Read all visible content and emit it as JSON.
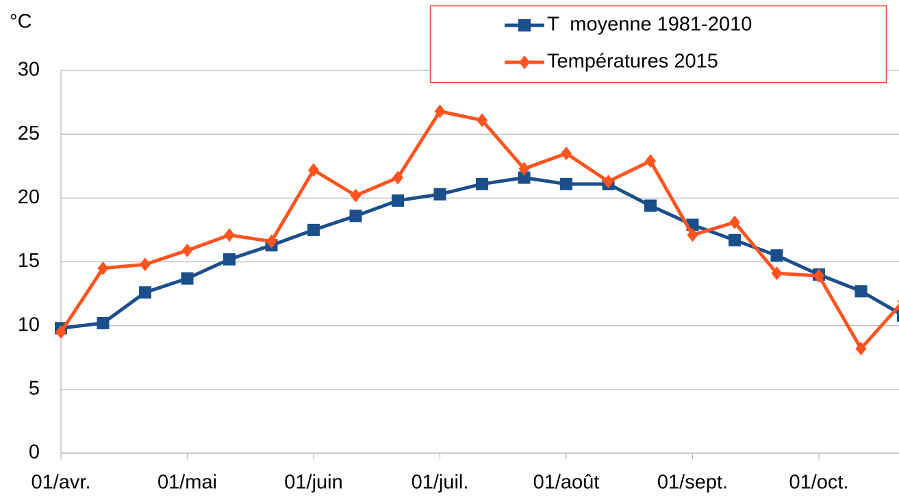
{
  "chart_data": {
    "type": "line",
    "y_label": "°C",
    "categories": [
      "01/avr.",
      null,
      null,
      "01/mai",
      null,
      null,
      "01/juin",
      null,
      null,
      "01/juil.",
      null,
      null,
      "01/août",
      null,
      null,
      "01/sept.",
      null,
      null,
      "01/oct.",
      null,
      null
    ],
    "series": [
      {
        "name": "T  moyenne 1981-2010",
        "color": "#1b4f8c",
        "marker": "square",
        "values": [
          9.8,
          10.2,
          12.6,
          13.7,
          15.2,
          16.3,
          17.5,
          18.6,
          19.8,
          20.3,
          21.1,
          21.6,
          21.1,
          21.1,
          19.4,
          17.9,
          16.7,
          15.5,
          14.0,
          12.7,
          10.8
        ]
      },
      {
        "name": "Températures 2015",
        "color": "#ff5420",
        "marker": "diamond",
        "values": [
          9.5,
          14.5,
          14.8,
          15.9,
          17.1,
          16.6,
          22.2,
          20.2,
          21.6,
          26.8,
          26.1,
          22.3,
          23.5,
          21.3,
          22.9,
          17.1,
          18.1,
          14.1,
          13.9,
          8.2,
          11.9
        ]
      }
    ],
    "ylim": [
      0,
      30
    ],
    "yticks": [
      0,
      5,
      10,
      15,
      20,
      25,
      30
    ],
    "grid": true,
    "legend": "upper right"
  }
}
